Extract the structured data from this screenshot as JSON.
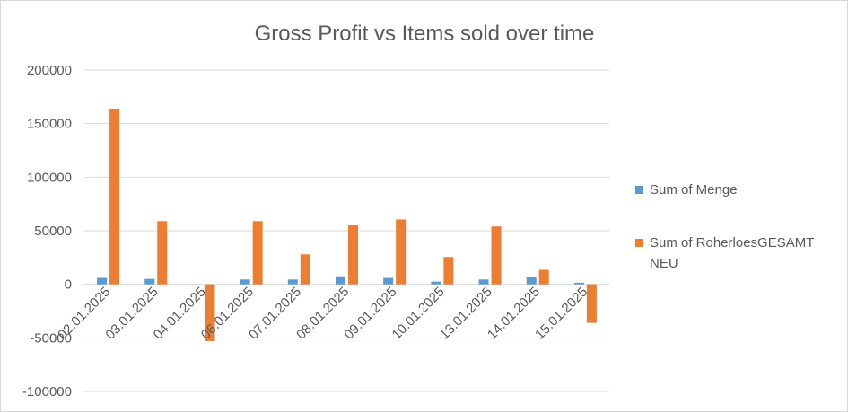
{
  "chart_data": {
    "type": "bar",
    "title": "Gross Profit vs Items sold over time",
    "xlabel": "",
    "ylabel": "",
    "ylim": [
      -100000,
      200000
    ],
    "yticks": [
      200000,
      150000,
      100000,
      50000,
      0,
      -50000,
      -100000
    ],
    "grid": true,
    "legend_position": "right",
    "categories": [
      "02.01.2025",
      "03.01.2025",
      "04.01.2025",
      "06.01.2025",
      "07.01.2025",
      "08.01.2025",
      "09.01.2025",
      "10.01.2025",
      "13.01.2025",
      "14.01.2025",
      "15.01.2025"
    ],
    "series": [
      {
        "name": "Sum of Menge",
        "color": "#5b9bd5",
        "values": [
          6000,
          5000,
          0,
          4500,
          4500,
          7500,
          6000,
          2500,
          4500,
          6500,
          1500
        ]
      },
      {
        "name": "Sum of RoherloesGESAMT NEU",
        "name_lines": [
          "Sum of RoherloesGESAMT",
          "NEU"
        ],
        "color": "#ed7d31",
        "values": [
          164000,
          59000,
          -53000,
          59000,
          28000,
          55000,
          60500,
          25500,
          54000,
          13500,
          -36000
        ]
      }
    ]
  }
}
